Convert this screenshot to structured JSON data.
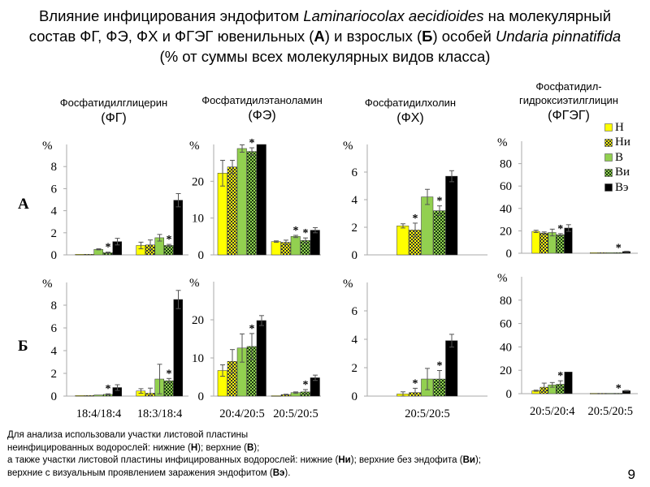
{
  "title": {
    "line1_a": "Влияние инфицирования эндофитом ",
    "line1_species": "Laminariocolax aecidioides",
    "line1_b": " на молекулярный",
    "line2_a": "состав ФГ, ФЭ, ФХ и ФГЭГ ювенильных (",
    "line2_A": "А",
    "line2_b": ") и взрослых (",
    "line2_B": "Б",
    "line2_c": ") особей ",
    "line2_species": "Undaria pinnatifida",
    "line3": "(% от суммы всех молекулярных видов класса)"
  },
  "headings": [
    {
      "name": "Фосфатидилглицерин",
      "abbr": "(ФГ)"
    },
    {
      "name": "Фосфатидилэтаноламин",
      "abbr": "(ФЭ)"
    },
    {
      "name": "Фосфатидилхолин",
      "abbr": "(ФХ)"
    },
    {
      "name": "Фосфатидил-\nгидроксиэтилглицин",
      "abbr": "(ФГЭГ)"
    }
  ],
  "row_labels": {
    "A": "А",
    "B": "Б"
  },
  "legend": [
    {
      "label": "Н",
      "color": "#ffff00",
      "hatched": false
    },
    {
      "label": "Ни",
      "color": "#ffff00",
      "hatched": true
    },
    {
      "label": "В",
      "color": "#92d050",
      "hatched": false
    },
    {
      "label": "Ви",
      "color": "#92d050",
      "hatched": true
    },
    {
      "label": "Вэ",
      "color": "#000000",
      "hatched": false
    }
  ],
  "chart_data": [
    {
      "type": "bar",
      "panel": "ФГ А",
      "ylabel": "%",
      "ylim": [
        0,
        10
      ],
      "yticks": [
        0,
        2,
        4,
        6,
        8
      ],
      "categories": [
        "18:4/18:4",
        "18:3/18:4"
      ],
      "show_xlabels": false,
      "series": [
        {
          "name": "Н",
          "values": [
            0.05,
            0.85
          ],
          "errors": [
            0,
            0.3
          ],
          "sig": [
            false,
            false
          ]
        },
        {
          "name": "Ни",
          "values": [
            0.05,
            0.9
          ],
          "errors": [
            0,
            0.45
          ],
          "sig": [
            false,
            false
          ]
        },
        {
          "name": "В",
          "values": [
            0.5,
            1.55
          ],
          "errors": [
            0.05,
            0.3
          ],
          "sig": [
            false,
            false
          ]
        },
        {
          "name": "Ви",
          "values": [
            0.2,
            0.85
          ],
          "errors": [
            0.05,
            0.1
          ],
          "sig": [
            true,
            true
          ]
        },
        {
          "name": "Вэ",
          "values": [
            1.2,
            4.95
          ],
          "errors": [
            0.3,
            0.6
          ],
          "sig": [
            false,
            false
          ]
        }
      ]
    },
    {
      "type": "bar",
      "panel": "ФЭ А",
      "ylabel": "%",
      "ylim": [
        0,
        30
      ],
      "yticks": [
        0,
        10,
        20
      ],
      "categories": [
        "20:4/20:5",
        "20:5/20:5"
      ],
      "show_xlabels": false,
      "series": [
        {
          "name": "Н",
          "values": [
            22.2,
            3.6
          ],
          "errors": [
            3.5,
            0.2
          ],
          "sig": [
            false,
            false
          ]
        },
        {
          "name": "Ни",
          "values": [
            23.9,
            3.4
          ],
          "errors": [
            1.8,
            0.6
          ],
          "sig": [
            false,
            false
          ]
        },
        {
          "name": "В",
          "values": [
            28.9,
            5.0
          ],
          "errors": [
            1.0,
            0.3
          ],
          "sig": [
            false,
            true
          ]
        },
        {
          "name": "Ви",
          "values": [
            28.1,
            3.9
          ],
          "errors": [
            1.0,
            0.7
          ],
          "sig": [
            true,
            true
          ]
        },
        {
          "name": "Вэ",
          "values": [
            30.0,
            6.7
          ],
          "errors": [
            0,
            0.7
          ],
          "sig": [
            false,
            false
          ]
        }
      ]
    },
    {
      "type": "bar",
      "panel": "ФХ А",
      "ylabel": "%",
      "ylim": [
        0,
        8
      ],
      "yticks": [
        0,
        2,
        4,
        6
      ],
      "categories": [
        "20:5/20:5"
      ],
      "show_xlabels": false,
      "series": [
        {
          "name": "Н",
          "values": [
            2.1
          ],
          "errors": [
            0.15
          ],
          "sig": [
            false
          ]
        },
        {
          "name": "Ни",
          "values": [
            1.8
          ],
          "errors": [
            0.5
          ],
          "sig": [
            true
          ]
        },
        {
          "name": "В",
          "values": [
            4.2
          ],
          "errors": [
            0.55
          ],
          "sig": [
            false
          ]
        },
        {
          "name": "Ви",
          "values": [
            3.2
          ],
          "errors": [
            0.35
          ],
          "sig": [
            true
          ]
        },
        {
          "name": "Вэ",
          "values": [
            5.7
          ],
          "errors": [
            0.4
          ],
          "sig": [
            false
          ]
        }
      ]
    },
    {
      "type": "bar",
      "panel": "ФГЭГ А",
      "ylabel": "%",
      "ylim": [
        0,
        100
      ],
      "yticks": [
        0,
        20,
        40,
        60,
        80
      ],
      "categories": [
        "20:5/20:4",
        "20:5/20:5"
      ],
      "show_xlabels": false,
      "series": [
        {
          "name": "Н",
          "values": [
            19.5,
            0.5
          ],
          "errors": [
            1,
            0
          ],
          "sig": [
            false,
            false
          ]
        },
        {
          "name": "Ни",
          "values": [
            18,
            0.5
          ],
          "errors": [
            1,
            0
          ],
          "sig": [
            false,
            false
          ]
        },
        {
          "name": "В",
          "values": [
            18.5,
            0.5
          ],
          "errors": [
            3,
            0
          ],
          "sig": [
            false,
            false
          ]
        },
        {
          "name": "Ви",
          "values": [
            16.5,
            0.5
          ],
          "errors": [
            1,
            0
          ],
          "sig": [
            true,
            true
          ]
        },
        {
          "name": "Вэ",
          "values": [
            22.5,
            1.5
          ],
          "errors": [
            3,
            0.3
          ],
          "sig": [
            false,
            false
          ]
        }
      ]
    },
    {
      "type": "bar",
      "panel": "ФГ Б",
      "ylabel": "%",
      "ylim": [
        0,
        10
      ],
      "yticks": [
        0,
        2,
        4,
        6,
        8
      ],
      "categories": [
        "18:4/18:4",
        "18:3/18:4"
      ],
      "show_xlabels": true,
      "series": [
        {
          "name": "Н",
          "values": [
            0.05,
            0.45
          ],
          "errors": [
            0,
            0.2
          ],
          "sig": [
            false,
            false
          ]
        },
        {
          "name": "Ни",
          "values": [
            0.05,
            0.25
          ],
          "errors": [
            0,
            0.45
          ],
          "sig": [
            false,
            false
          ]
        },
        {
          "name": "В",
          "values": [
            0.1,
            1.5
          ],
          "errors": [
            0,
            1.3
          ],
          "sig": [
            false,
            false
          ]
        },
        {
          "name": "Ви",
          "values": [
            0.15,
            1.35
          ],
          "errors": [
            0.05,
            0.2
          ],
          "sig": [
            true,
            true
          ]
        },
        {
          "name": "Вэ",
          "values": [
            0.75,
            8.5
          ],
          "errors": [
            0.25,
            0.8
          ],
          "sig": [
            false,
            false
          ]
        }
      ]
    },
    {
      "type": "bar",
      "panel": "ФЭ Б",
      "ylabel": "%",
      "ylim": [
        0,
        30
      ],
      "yticks": [
        0,
        10,
        20
      ],
      "categories": [
        "20:4/20:5",
        "20:5/20:5"
      ],
      "show_xlabels": true,
      "series": [
        {
          "name": "Н",
          "values": [
            6.7,
            0.1
          ],
          "errors": [
            1.5,
            0
          ],
          "sig": [
            false,
            false
          ]
        },
        {
          "name": "Ни",
          "values": [
            9.1,
            0.4
          ],
          "errors": [
            3.1,
            0.1
          ],
          "sig": [
            false,
            false
          ]
        },
        {
          "name": "В",
          "values": [
            12.6,
            0.9
          ],
          "errors": [
            3.7,
            0.2
          ],
          "sig": [
            false,
            false
          ]
        },
        {
          "name": "Ви",
          "values": [
            13.0,
            1.1
          ],
          "errors": [
            3.4,
            0.6
          ],
          "sig": [
            true,
            true
          ]
        },
        {
          "name": "Вэ",
          "values": [
            19.8,
            4.8
          ],
          "errors": [
            1.3,
            0.7
          ],
          "sig": [
            false,
            false
          ]
        }
      ]
    },
    {
      "type": "bar",
      "panel": "ФХ Б",
      "ylabel": "%",
      "ylim": [
        0,
        8
      ],
      "yticks": [
        0,
        2,
        4,
        6
      ],
      "categories": [
        "20:5/20:5"
      ],
      "show_xlabels": true,
      "series": [
        {
          "name": "Н",
          "values": [
            0.15
          ],
          "errors": [
            0.15
          ],
          "sig": [
            false
          ]
        },
        {
          "name": "Ни",
          "values": [
            0.25
          ],
          "errors": [
            0.3
          ],
          "sig": [
            true
          ]
        },
        {
          "name": "В",
          "values": [
            1.2
          ],
          "errors": [
            0.75
          ],
          "sig": [
            false
          ]
        },
        {
          "name": "Ви",
          "values": [
            1.2
          ],
          "errors": [
            0.6
          ],
          "sig": [
            true
          ]
        },
        {
          "name": "Вэ",
          "values": [
            3.9
          ],
          "errors": [
            0.45
          ],
          "sig": [
            false
          ]
        }
      ]
    },
    {
      "type": "bar",
      "panel": "ФГЭГ Б",
      "ylabel": "%",
      "ylim": [
        0,
        100
      ],
      "yticks": [
        0,
        20,
        40,
        60,
        80
      ],
      "categories": [
        "20:5/20:4",
        "20:5/20:5"
      ],
      "show_xlabels": true,
      "series": [
        {
          "name": "Н",
          "values": [
            2.5,
            0.3
          ],
          "errors": [
            0.5,
            0
          ],
          "sig": [
            false,
            false
          ]
        },
        {
          "name": "Ни",
          "values": [
            5.5,
            0.3
          ],
          "errors": [
            3.5,
            0
          ],
          "sig": [
            false,
            false
          ]
        },
        {
          "name": "В",
          "values": [
            7.5,
            0.3
          ],
          "errors": [
            2,
            0
          ],
          "sig": [
            false,
            false
          ]
        },
        {
          "name": "Ви",
          "values": [
            8,
            0.3
          ],
          "errors": [
            3,
            0
          ],
          "sig": [
            true,
            true
          ]
        },
        {
          "name": "Вэ",
          "values": [
            18.5,
            2.5
          ],
          "errors": [
            0,
            0.3
          ],
          "sig": [
            false,
            false
          ]
        }
      ]
    }
  ],
  "note": {
    "l1": "Для анализа  использовали  участки  листовой  пластины",
    "l2a": "неинфицированных  водорослей: нижние  (",
    "l2H": "Н",
    "l2b": "); верхние (",
    "l2B": "В",
    "l2c": ");",
    "l3a": "а также участки листовой пластины инфицированных водорослей: нижние (",
    "l3Hi": "Ни",
    "l3b": "); верхние без эндофита (",
    "l3Bi": "Ви",
    "l3c": ");",
    "l4a": "верхние с визуальным проявлением заражения эндофитом (",
    "l4Be": "Вэ",
    "l4b": ")."
  },
  "page_number": "9"
}
